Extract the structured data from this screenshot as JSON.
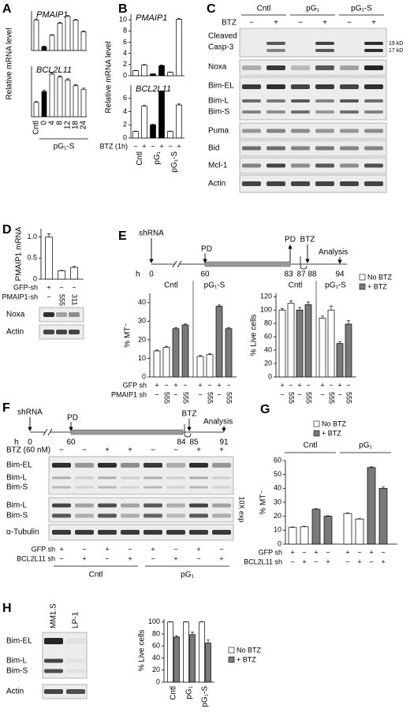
{
  "panel_labels": [
    "A",
    "B",
    "C",
    "D",
    "E",
    "F",
    "G",
    "H"
  ],
  "chart_data": [
    {
      "type": "bar",
      "title": "PMAIP1",
      "values": [
        1.0,
        0.12,
        0.5,
        0.9,
        1.12,
        1.0,
        0.62
      ],
      "errors": [
        0.04,
        0.02,
        0.02,
        0.02,
        0.03,
        0.02,
        0.02
      ],
      "colors": [
        "#ffffff",
        "#000000",
        "#ffffff",
        "#ffffff",
        "#ffffff",
        "#ffffff",
        "#ffffff"
      ],
      "ylim": [
        0,
        1.3
      ]
    },
    {
      "type": "bar",
      "title": "BCL2L11",
      "ylabel": "Relative mRNA level",
      "categories": [
        "Cntl",
        "0",
        "4",
        "8",
        "12",
        "18",
        "24"
      ],
      "groups": [
        "pG₁-S"
      ],
      "values": [
        1.0,
        1.75,
        2.95,
        2.75,
        2.55,
        2.15,
        1.9
      ],
      "errors": [
        0.05,
        0.1,
        0.08,
        0.08,
        0.08,
        0.08,
        0.08
      ],
      "colors": [
        "#ffffff",
        "#000000",
        "#ffffff",
        "#ffffff",
        "#ffffff",
        "#ffffff",
        "#ffffff"
      ],
      "ylim": [
        0,
        3.5
      ]
    },
    {
      "type": "bar",
      "title": "PMAIP1",
      "ylabel": "Relative mRNA level",
      "values": [
        0.9,
        1.9,
        0.3,
        1.8,
        0.6,
        10.1
      ],
      "errors": [
        0.05,
        0.1,
        0.03,
        0.1,
        0.05,
        0.15
      ],
      "colors": [
        "#ffffff",
        "#ffffff",
        "#000000",
        "#000000",
        "#ffffff",
        "#ffffff"
      ],
      "ylim": [
        0,
        11
      ],
      "yticks": [
        0,
        2,
        4,
        6,
        8,
        10
      ]
    },
    {
      "type": "bar",
      "title": "BCL2L11",
      "categories": [
        "Cntl",
        null,
        "pG₁",
        null,
        "pG₁-S",
        null
      ],
      "values": [
        1.0,
        4.8,
        2.0,
        7.0,
        1.0,
        5.0
      ],
      "errors": [
        0.05,
        0.15,
        0.1,
        0.15,
        0.05,
        0.15
      ],
      "colors": [
        "#ffffff",
        "#ffffff",
        "#000000",
        "#000000",
        "#ffffff",
        "#ffffff"
      ],
      "ylim": [
        0,
        8
      ],
      "yticks": [
        0,
        2,
        4,
        6
      ],
      "rows": [
        {
          "label": "BTZ (1h)",
          "marks": [
            "−",
            "+",
            "−",
            "+",
            "−",
            "+"
          ]
        }
      ]
    },
    {
      "type": "bar",
      "ylabel": "PMAIP1 mRNA",
      "values": [
        1.0,
        0.2,
        0.28
      ],
      "errors": [
        0.08,
        0.01,
        0.02
      ],
      "colors": [
        "#ffffff",
        "#ffffff",
        "#ffffff"
      ],
      "ylim": [
        0,
        1.2
      ],
      "yticks": [
        0,
        0.5,
        {
          "value": 1,
          "label": "1.0"
        }
      ],
      "rows": [
        {
          "label": "GFP-sh",
          "marks": [
            "+",
            "−",
            "−"
          ]
        },
        {
          "label": "PMAIP1-sh",
          "marks": [
            "−",
            "555",
            "311"
          ]
        }
      ]
    },
    {
      "type": "bar",
      "ylabel": "% MT⁻",
      "groups": [
        "Cntl",
        "pG₁-S"
      ],
      "values": [
        14,
        16,
        26,
        28,
        11,
        12,
        38,
        26
      ],
      "errors": [
        0.5,
        0.5,
        0.5,
        0.5,
        0.5,
        0.5,
        0.7,
        0.5
      ],
      "colors": [
        "#ffffff",
        "#ffffff",
        "#7a7a7a",
        "#7a7a7a",
        "#ffffff",
        "#ffffff",
        "#7a7a7a",
        "#7a7a7a"
      ],
      "ylim": [
        0,
        45
      ],
      "yticks": [
        0,
        10,
        20,
        30,
        40
      ],
      "rows": [
        {
          "label": "GFP sh",
          "marks": [
            "+",
            "−",
            "+",
            "−",
            "+",
            "−",
            "+",
            "−"
          ]
        },
        {
          "label": "PMAIP1 sh",
          "marks": [
            "−",
            "555",
            "−",
            "555",
            "−",
            "555",
            "−",
            "555"
          ]
        }
      ]
    },
    {
      "type": "bar",
      "ylabel": "% Live cells",
      "groups": [
        "Cntl",
        "pG₁-S"
      ],
      "values": [
        100,
        110,
        100,
        108,
        88,
        100,
        50,
        79
      ],
      "errors": [
        2,
        4,
        4,
        4,
        3,
        6,
        3,
        5
      ],
      "colors": [
        "#ffffff",
        "#ffffff",
        "#7a7a7a",
        "#7a7a7a",
        "#ffffff",
        "#ffffff",
        "#7a7a7a",
        "#7a7a7a"
      ],
      "ylim": [
        0,
        125
      ],
      "yticks": [
        0,
        20,
        40,
        60,
        80,
        100,
        120
      ],
      "legend": [
        {
          "name": "No BTZ",
          "color": "#ffffff"
        },
        {
          "name": "+ BTZ",
          "color": "#7a7a7a"
        }
      ],
      "rows": [
        {
          "marks": [
            "+",
            "−",
            "+",
            "−",
            "+",
            "−",
            "+",
            "−"
          ]
        },
        {
          "marks": [
            "−",
            "555",
            "−",
            "555",
            "−",
            "555",
            "−",
            "555"
          ]
        }
      ]
    },
    {
      "type": "bar",
      "ylabel": "% MT⁻",
      "groups": [
        "Cntl",
        "pG₁"
      ],
      "values": [
        12,
        12.5,
        25,
        20,
        22,
        18,
        55,
        40
      ],
      "errors": [
        0.3,
        0.3,
        0.5,
        0.3,
        0.3,
        0.3,
        0.5,
        1
      ],
      "colors": [
        "#ffffff",
        "#ffffff",
        "#7a7a7a",
        "#7a7a7a",
        "#ffffff",
        "#ffffff",
        "#7a7a7a",
        "#7a7a7a"
      ],
      "ylim": [
        0,
        60
      ],
      "yticks": [
        0,
        10,
        20,
        30,
        40,
        50,
        60
      ],
      "legend": [
        {
          "name": "No BTZ",
          "color": "#ffffff"
        },
        {
          "name": "+ BTZ",
          "color": "#7a7a7a"
        }
      ],
      "rows": [
        {
          "label": "GFP sh",
          "marks": [
            "+",
            "−",
            "+",
            "−",
            "+",
            "−",
            "+",
            "−"
          ]
        },
        {
          "label": "BCL2L11 sh",
          "marks": [
            "−",
            "+",
            "−",
            "+",
            "−",
            "+",
            "−",
            "+"
          ]
        }
      ]
    },
    {
      "type": "bar",
      "ylabel": "% Live cells",
      "categories": [
        "Cntl",
        null,
        "pG₁",
        null,
        "pG₁-S",
        null
      ],
      "values": [
        100,
        75,
        100,
        79,
        100,
        65
      ],
      "errors": [
        0.5,
        2,
        0.5,
        4,
        0.5,
        5
      ],
      "colors": [
        "#ffffff",
        "#7a7a7a",
        "#ffffff",
        "#7a7a7a",
        "#ffffff",
        "#7a7a7a"
      ],
      "ylim": [
        0,
        105
      ],
      "yticks": [
        0,
        20,
        40,
        60,
        80,
        100
      ],
      "legend": [
        {
          "name": "No BTZ",
          "color": "#ffffff"
        },
        {
          "name": "+ BTZ",
          "color": "#7a7a7a"
        }
      ]
    }
  ],
  "blots": [
    {
      "groups": [
        "Cntl",
        "pG₁",
        "pG₁-S"
      ],
      "treatment": "BTZ",
      "marks": [
        "−",
        "+",
        "−",
        "+",
        "−",
        "+"
      ],
      "rows": [
        "Cleaved",
        "Casp-3",
        "Noxa",
        "Bim-EL",
        "Bim-L",
        "Bim-S",
        "Puma",
        "Bid",
        "Mcl-1",
        "Actin"
      ],
      "markers": [
        "19 kD",
        "17 kD"
      ]
    },
    {
      "rows": [
        "Noxa",
        "Actin"
      ]
    },
    {
      "treatment": "BTZ (60 nM)",
      "marks": [
        "−",
        "−",
        "+",
        "+",
        "−",
        "−",
        "+",
        "+"
      ],
      "rows": [
        "Bim-EL",
        "Bim-L",
        "Bim-S",
        "Bim-L",
        "Bim-S",
        "α-Tubulin"
      ],
      "note": "10X exp",
      "lane_rows": [
        {
          "label": "GFP sh",
          "marks": [
            "+",
            "−",
            "+",
            "−",
            "+",
            "−",
            "+",
            "−"
          ]
        },
        {
          "label": "BCL2L11 sh",
          "marks": [
            "−",
            "+",
            "−",
            "+",
            "−",
            "+",
            "−",
            "+"
          ]
        }
      ],
      "groups": [
        "Cntl",
        "pG₁"
      ]
    },
    {
      "lanes": [
        "MM1.S",
        "LP-1"
      ],
      "rows": [
        "Bim-EL",
        "Bim-L",
        "Bim-S",
        "Actin"
      ]
    }
  ],
  "timelines": [
    {
      "start": "shRNA",
      "events": [
        "PD",
        "PD",
        "BTZ",
        "Analysis"
      ],
      "unit": "h",
      "hours": [
        "0",
        "60",
        "83",
        "87",
        "88",
        "94"
      ]
    },
    {
      "start": "shRNA",
      "events": [
        "PD",
        "BTZ",
        "Analysis"
      ],
      "unit": "h",
      "hours": [
        "0",
        "60",
        "84",
        "85",
        "91"
      ]
    }
  ]
}
